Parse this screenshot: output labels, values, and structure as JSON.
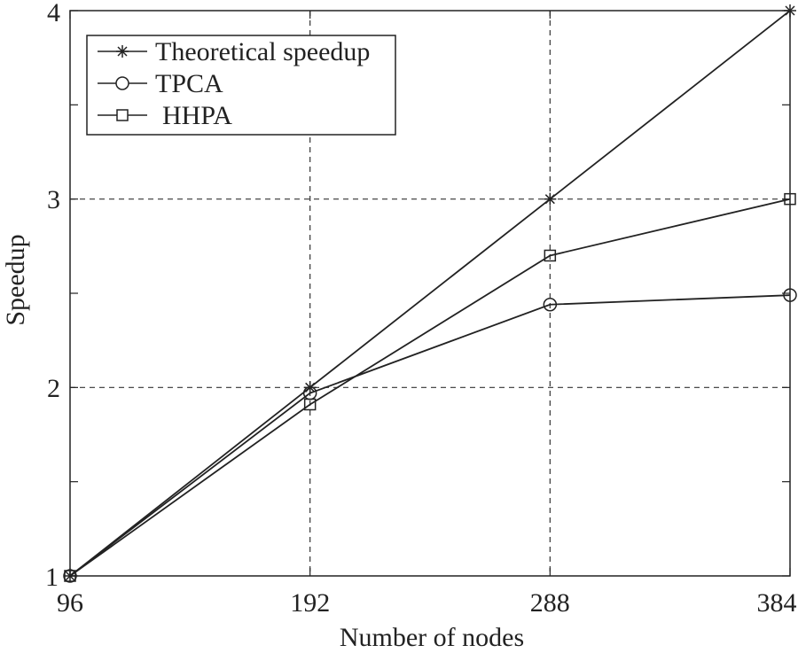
{
  "chart_data": {
    "type": "line",
    "title": "",
    "xlabel": "Number of nodes",
    "ylabel": "Speedup",
    "x": [
      96,
      192,
      288,
      384
    ],
    "xticks": [
      "96",
      "192",
      "288",
      "384"
    ],
    "yticks": [
      "1",
      "2",
      "3",
      "4"
    ],
    "xlim": [
      96,
      384
    ],
    "ylim": [
      1,
      4
    ],
    "grid": "dashed at 192, 288 and at 2, 3",
    "legend_position": "top-left",
    "series": [
      {
        "name": "Theoretical speedup",
        "marker": "asterisk",
        "values": [
          1.0,
          2.0,
          3.0,
          4.0
        ]
      },
      {
        "name": "TPCA",
        "marker": "circle",
        "values": [
          1.0,
          1.97,
          2.44,
          2.49
        ]
      },
      {
        "name": "HHPA",
        "marker": "square",
        "values": [
          1.0,
          1.91,
          2.7,
          3.0
        ]
      }
    ],
    "colors": {
      "line": "#222222",
      "grid": "#333333",
      "background": "#ffffff"
    }
  }
}
